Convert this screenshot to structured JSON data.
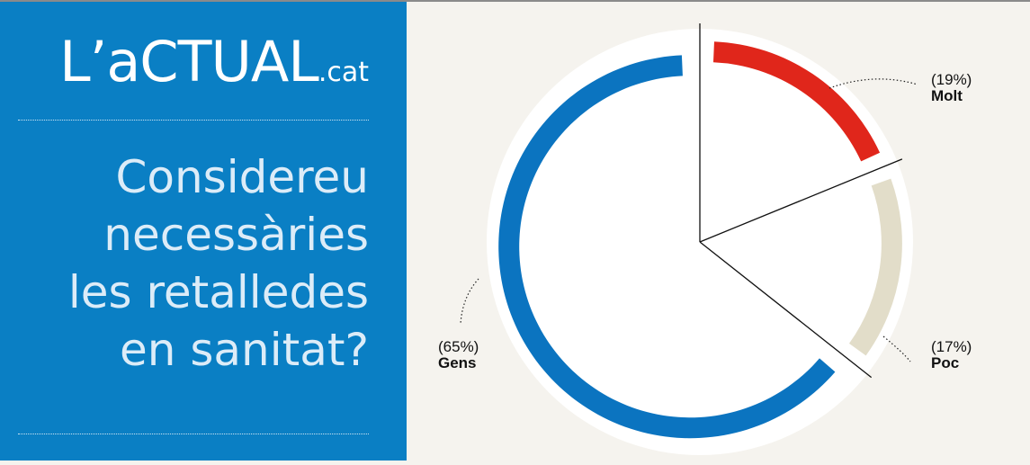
{
  "brand": {
    "main": "L’aCTUAL",
    "suffix": ".cat"
  },
  "question": {
    "lines": [
      "Considereu",
      "necessàries",
      "les retalledes",
      "en sanitat?"
    ]
  },
  "colors": {
    "panel": "#0a7fc4",
    "Molt": "#e0261b",
    "Poc": "#e2ddc9",
    "Gens": "#0b74c0"
  },
  "labels": {
    "molt": {
      "pct": "(19%)",
      "name": "Molt"
    },
    "poc": {
      "pct": "(17%)",
      "name": "Poc"
    },
    "gens": {
      "pct": "(65%)",
      "name": "Gens"
    }
  },
  "chart_data": {
    "type": "pie",
    "title": "Considereu necessàries les retalledes en sanitat?",
    "categories": [
      "Molt",
      "Poc",
      "Gens"
    ],
    "values": [
      19,
      17,
      65
    ],
    "value_labels": [
      "(19%)",
      "(17%)",
      "(65%)"
    ],
    "legend": "labels-on-chart"
  }
}
